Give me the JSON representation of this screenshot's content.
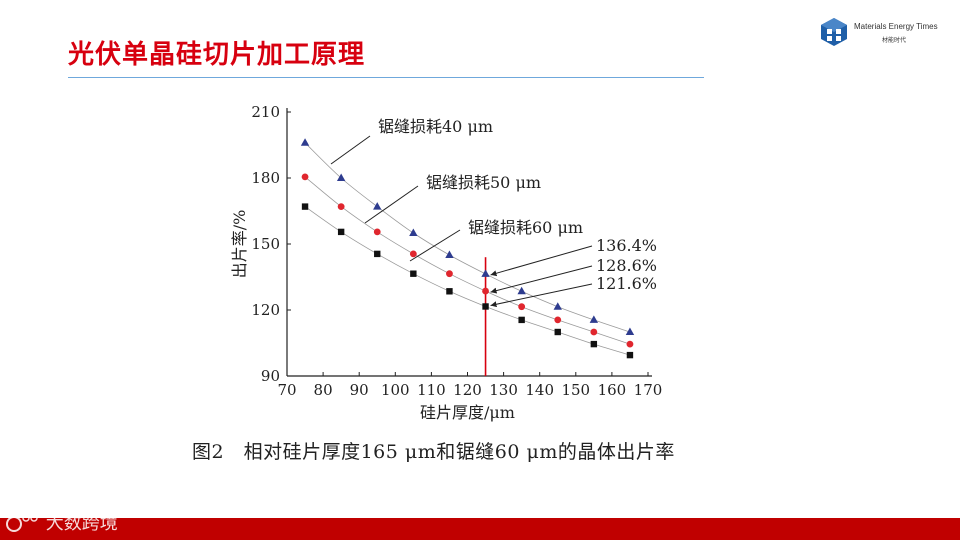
{
  "slide": {
    "title": "光伏单晶硅切片加工原理",
    "caption": "图2　相对硅片厚度165 μm和锯缝60 μm的晶体出片率"
  },
  "logo": {
    "icon": "cube-logo-icon",
    "name": "Materials Energy Times",
    "subtitle": "材能时代",
    "color": "#1f5fa8"
  },
  "watermark": {
    "text": "大数跨境",
    "icon": "ic-logo-icon"
  },
  "colors": {
    "title": "#d7000f",
    "rule": "#6fa8dc",
    "footer": "#c00000",
    "marker_line": "#d7000f"
  },
  "chart_data": {
    "type": "scatter",
    "xlabel": "硅片厚度/μm",
    "ylabel": "出片率/%",
    "xlim": [
      70,
      170
    ],
    "ylim": [
      90,
      210
    ],
    "xticks": [
      70,
      80,
      90,
      100,
      110,
      120,
      130,
      140,
      150,
      160,
      170
    ],
    "yticks": [
      90,
      120,
      150,
      180,
      210
    ],
    "grid": false,
    "x": [
      75,
      85,
      95,
      105,
      115,
      125,
      135,
      145,
      155,
      165
    ],
    "series": [
      {
        "name": "锯缝损耗40 μm",
        "marker": "triangle",
        "color": "#2e3c8f",
        "values": [
          196,
          180,
          167,
          155,
          145,
          136.4,
          128.5,
          121.5,
          115.5,
          110
        ]
      },
      {
        "name": "锯缝损耗50 μm",
        "marker": "circle",
        "color": "#e0262e",
        "values": [
          180.5,
          167,
          155.5,
          145.5,
          136.5,
          128.6,
          121.5,
          115.5,
          110,
          104.5
        ]
      },
      {
        "name": "锯缝损耗60 μm",
        "marker": "square",
        "color": "#111111",
        "values": [
          167,
          155.5,
          145.5,
          136.5,
          128.5,
          121.6,
          115.5,
          110,
          104.5,
          99.5
        ]
      }
    ],
    "vline": {
      "x": 125,
      "y_from": 90,
      "y_to": 144,
      "color": "#d7000f"
    },
    "annotations": [
      {
        "text": "136.4%",
        "x": 125,
        "y": 136.4
      },
      {
        "text": "128.6%",
        "x": 125,
        "y": 128.6
      },
      {
        "text": "121.6%",
        "x": 125,
        "y": 121.6
      }
    ]
  }
}
